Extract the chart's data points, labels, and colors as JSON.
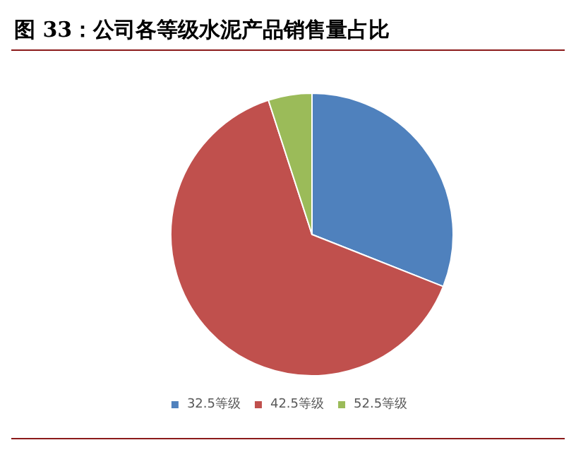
{
  "chart_data": {
    "type": "pie",
    "title": "图 33：公司各等级水泥产品销售量占比",
    "categories": [
      "32.5等级",
      "42.5等级",
      "52.5等级"
    ],
    "values": [
      31,
      64,
      5
    ],
    "colors": [
      "#4f81bd",
      "#c0504d",
      "#9bbb59"
    ],
    "legend": "bottom"
  }
}
